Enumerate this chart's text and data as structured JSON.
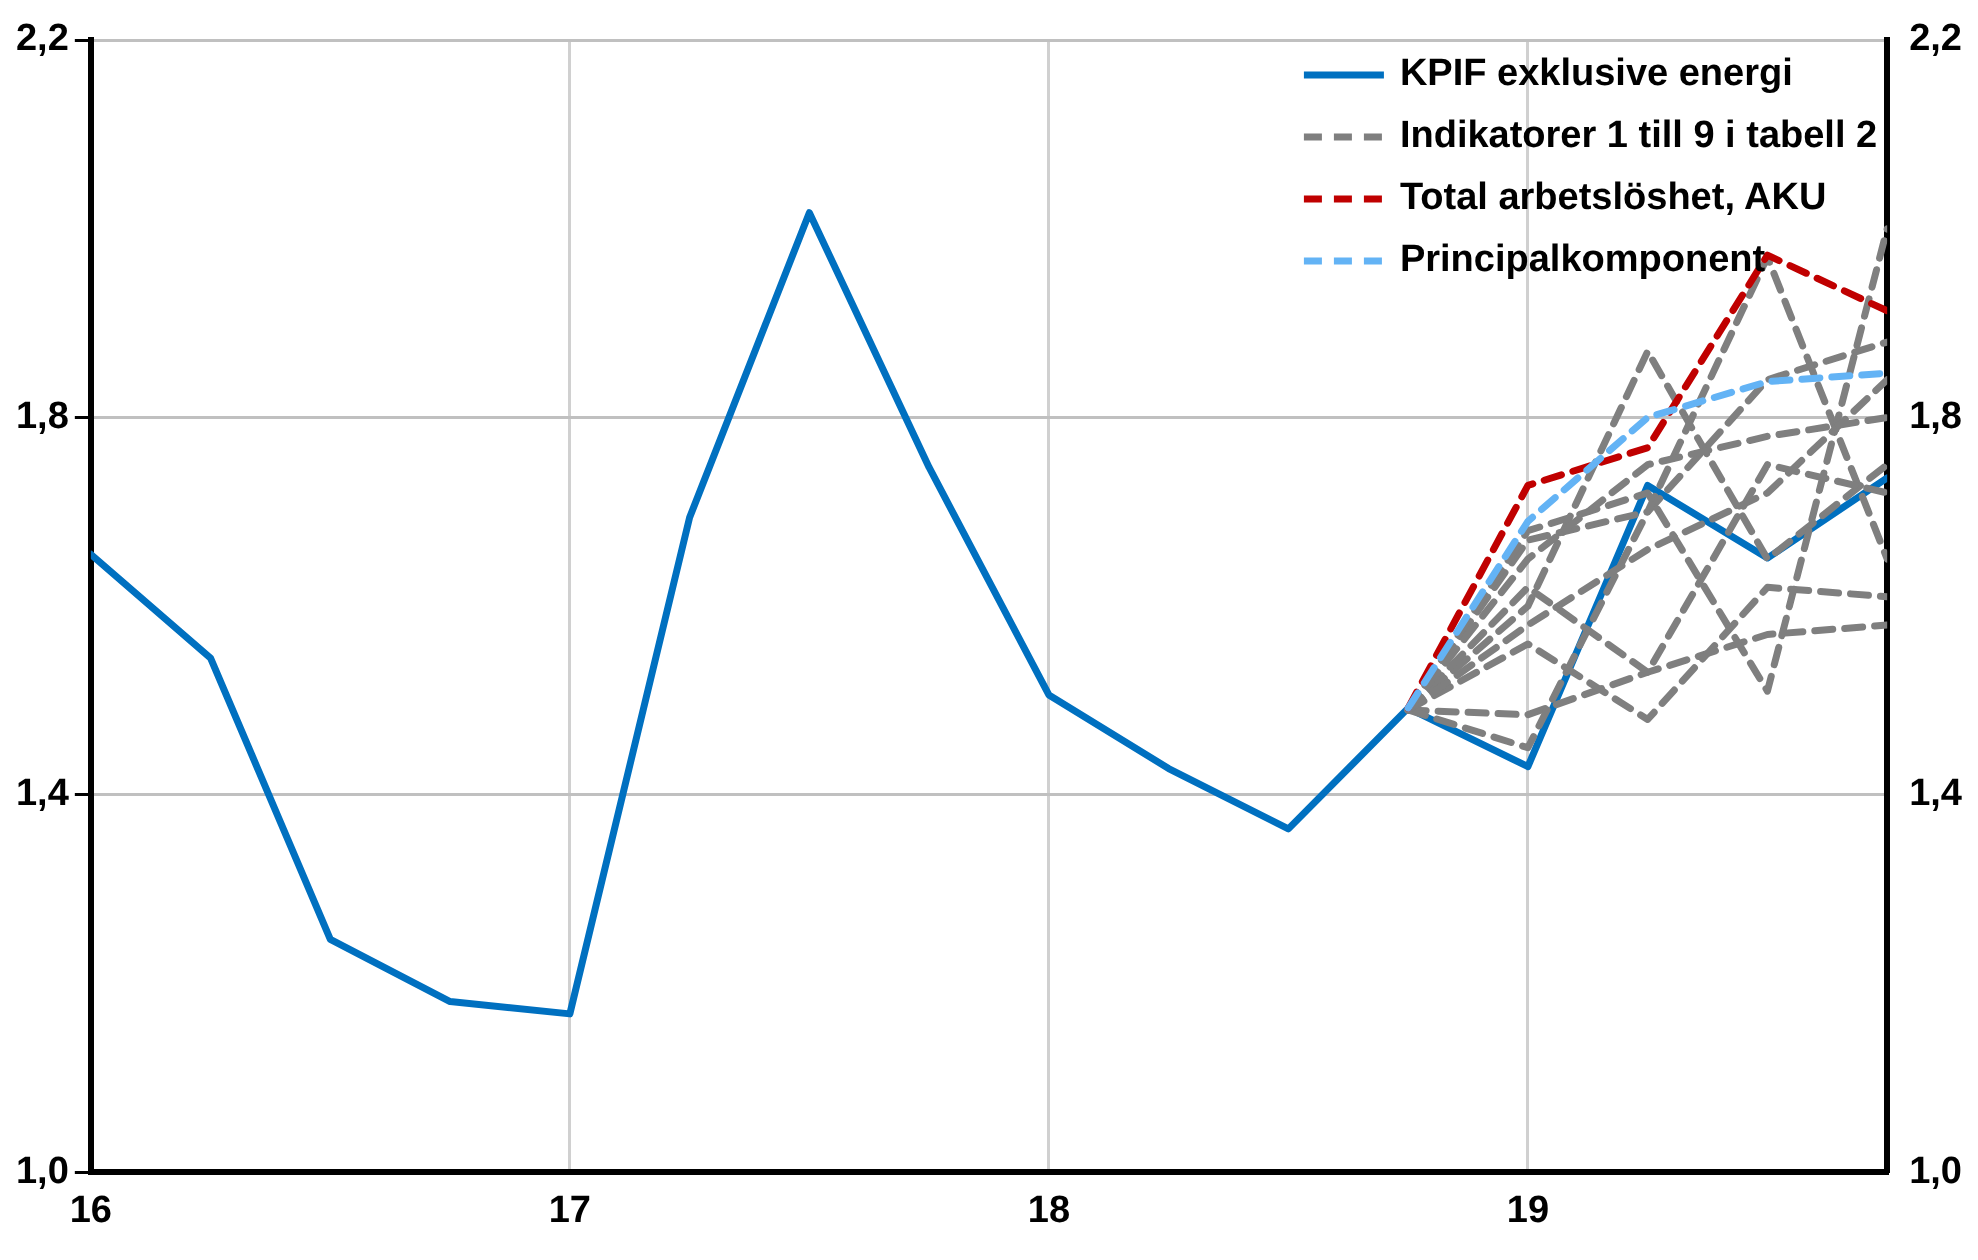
{
  "chart_data": {
    "type": "line",
    "x": [
      16,
      16.25,
      16.5,
      16.75,
      17,
      17.25,
      17.5,
      17.75,
      18,
      18.25,
      18.5,
      18.75,
      19,
      19.25,
      19.5,
      19.75
    ],
    "xlim": [
      16,
      19.75
    ],
    "xticks": [
      16,
      17,
      18,
      19
    ],
    "ylim": [
      1.0,
      2.2
    ],
    "yticks": [
      {
        "value": 1.0,
        "label": "1,0"
      },
      {
        "value": 1.4,
        "label": "1,4"
      },
      {
        "value": 1.8,
        "label": "1,8"
      },
      {
        "value": 2.2,
        "label": "2,2"
      }
    ],
    "y2lim": [
      1.0,
      2.2
    ],
    "y2ticks": [
      {
        "value": 1.0,
        "label": "1,0"
      },
      {
        "value": 1.4,
        "label": "1,4"
      },
      {
        "value": 1.8,
        "label": "1,8"
      },
      {
        "value": 2.2,
        "label": "2,2"
      }
    ],
    "grid": true,
    "legend": "top right",
    "marker": "none",
    "series": [
      {
        "name": "KPIF exklusive energi",
        "color": "#0070c0",
        "line_style": "solid",
        "values": [
          1.655,
          1.545,
          1.247,
          1.181,
          1.168,
          1.694,
          2.017,
          1.747,
          1.506,
          1.428,
          1.364,
          1.492,
          1.43,
          1.728,
          1.651,
          1.736
        ]
      },
      {
        "name": "Indikatorer 1 till 9 i tabell 2",
        "color": "#7f7f7f",
        "line_style": "dashed",
        "x": [
          18.75,
          19,
          19.25,
          19.5,
          19.75
        ],
        "values": [
          1.49,
          1.485,
          1.53,
          1.57,
          1.58
        ]
      },
      {
        "color": "#7f7f7f",
        "line_style": "dashed",
        "x": [
          18.75,
          19,
          19.25,
          19.5,
          19.75
        ],
        "values": [
          1.49,
          1.45,
          1.7,
          1.84,
          1.88
        ]
      },
      {
        "color": "#7f7f7f",
        "line_style": "dashed",
        "x": [
          18.75,
          19,
          19.25,
          19.5,
          19.75
        ],
        "values": [
          1.49,
          1.6,
          1.87,
          1.65,
          1.75
        ]
      },
      {
        "color": "#7f7f7f",
        "line_style": "dashed",
        "x": [
          18.75,
          19,
          19.25,
          19.5,
          19.75
        ],
        "values": [
          1.49,
          1.67,
          1.7,
          1.97,
          1.65
        ]
      },
      {
        "color": "#7f7f7f",
        "line_style": "dashed",
        "x": [
          18.75,
          19,
          19.25,
          19.5,
          19.75
        ],
        "values": [
          1.49,
          1.56,
          1.48,
          1.62,
          1.61
        ]
      },
      {
        "color": "#7f7f7f",
        "line_style": "dashed",
        "x": [
          18.75,
          19,
          19.25,
          19.5,
          19.75
        ],
        "values": [
          1.49,
          1.62,
          1.53,
          1.75,
          1.72
        ]
      },
      {
        "color": "#7f7f7f",
        "line_style": "dashed",
        "x": [
          18.75,
          19,
          19.25,
          19.5,
          19.75
        ],
        "values": [
          1.49,
          1.68,
          1.72,
          1.51,
          2.0
        ]
      },
      {
        "color": "#7f7f7f",
        "line_style": "dashed",
        "x": [
          18.75,
          19,
          19.25,
          19.5,
          19.75
        ],
        "values": [
          1.49,
          1.58,
          1.66,
          1.72,
          1.84
        ]
      },
      {
        "color": "#7f7f7f",
        "line_style": "dashed",
        "x": [
          18.75,
          19,
          19.25,
          19.5,
          19.75
        ],
        "values": [
          1.49,
          1.65,
          1.75,
          1.78,
          1.8
        ]
      },
      {
        "name": "Total arbetslöshet, AKU",
        "color": "#c00000",
        "line_style": "dashed",
        "x": [
          18.75,
          19,
          19.25,
          19.5,
          19.75
        ],
        "values": [
          1.492,
          1.728,
          1.768,
          1.972,
          1.913
        ]
      },
      {
        "name": "Principalkomponent",
        "color": "#63b3f5",
        "line_style": "dashed",
        "x": [
          18.75,
          19,
          19.25,
          19.5,
          19.75
        ],
        "values": [
          1.492,
          1.69,
          1.8,
          1.838,
          1.847
        ]
      }
    ]
  }
}
